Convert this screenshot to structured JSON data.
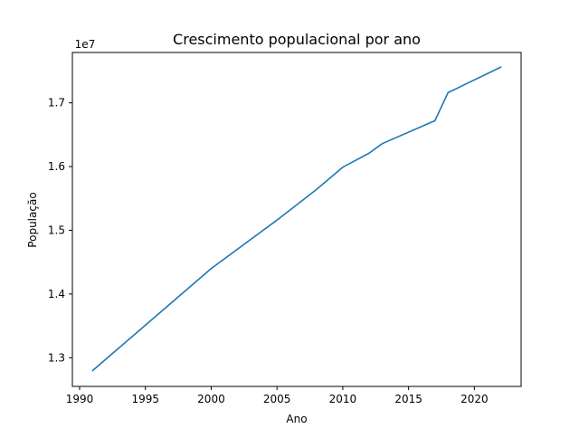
{
  "chart_data": {
    "type": "line",
    "title": "Crescimento populacional por ano",
    "xlabel": "Ano",
    "ylabel": "População",
    "y_offset_label": "1e7",
    "xlim": [
      1989.45,
      2023.55
    ],
    "ylim": [
      12.55,
      17.79
    ],
    "x_ticks": [
      1990,
      1995,
      2000,
      2005,
      2010,
      2015,
      2020
    ],
    "y_ticks": [
      1.3,
      1.4,
      1.5,
      1.6,
      1.7
    ],
    "grid": false,
    "legend": "none",
    "line_color": "#1f77b4",
    "series": [
      {
        "x": [
          1991,
          2000,
          2005,
          2008,
          2010,
          2012,
          2013,
          2017,
          2018,
          2019,
          2022
        ],
        "y": [
          12.8,
          14.4,
          15.16,
          15.64,
          15.99,
          16.21,
          16.36,
          16.72,
          17.16,
          17.26,
          17.56
        ]
      }
    ]
  }
}
